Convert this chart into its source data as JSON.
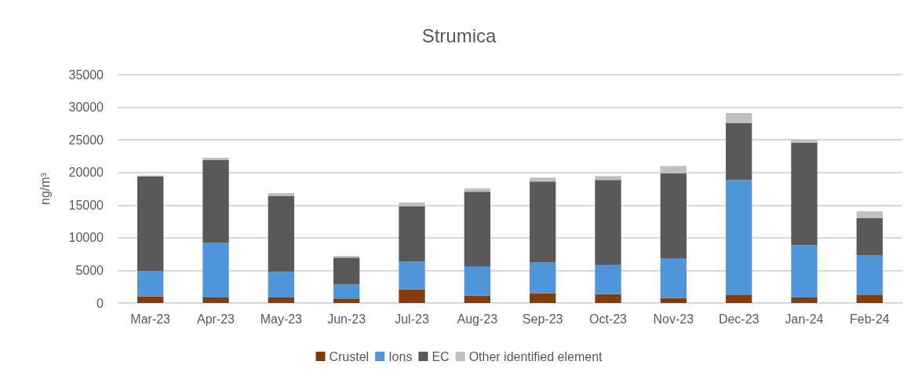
{
  "chart_data": {
    "type": "bar",
    "title": "Strumica",
    "ylabel": "ng/m³",
    "stacked": true,
    "categories": [
      "Mar-23",
      "Apr-23",
      "May-23",
      "Jun-23",
      "Jul-23",
      "Aug-23",
      "Sep-23",
      "Oct-23",
      "Nov-23",
      "Dec-23",
      "Jan-24",
      "Feb-24"
    ],
    "series": [
      {
        "name": "Crustel",
        "color": "#843c0c",
        "values": [
          1000,
          850,
          850,
          700,
          2100,
          1150,
          1500,
          1350,
          750,
          1200,
          850,
          1200
        ]
      },
      {
        "name": "Ions",
        "color": "#4e95d9",
        "values": [
          3900,
          8350,
          3930,
          2150,
          4200,
          4400,
          4700,
          4450,
          6100,
          17650,
          8000,
          6150
        ]
      },
      {
        "name": "EC",
        "color": "#595959",
        "values": [
          14450,
          12700,
          11650,
          4100,
          8500,
          11500,
          12400,
          13050,
          13000,
          8700,
          15700,
          5650
        ]
      },
      {
        "name": "Other identified element",
        "color": "#bfbfbf",
        "values": [
          200,
          350,
          400,
          250,
          600,
          500,
          600,
          600,
          1150,
          1550,
          500,
          1050
        ]
      }
    ],
    "ylim": [
      0,
      35000
    ],
    "yticks": [
      0,
      5000,
      10000,
      15000,
      20000,
      25000,
      30000,
      35000
    ],
    "grid": "y",
    "legend": "bottom"
  }
}
